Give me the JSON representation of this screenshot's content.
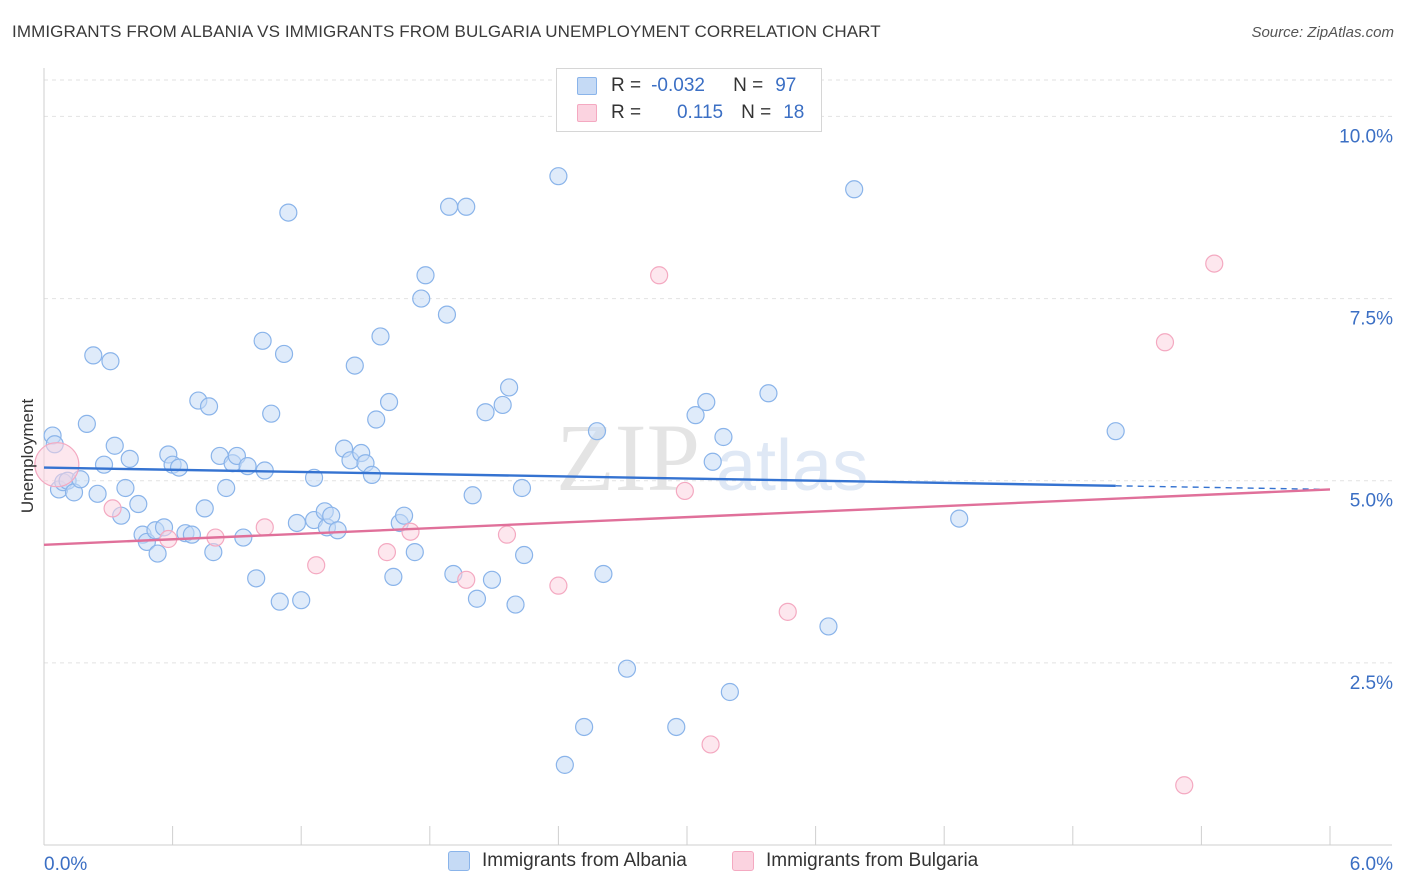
{
  "title": "IMMIGRANTS FROM ALBANIA VS IMMIGRANTS FROM BULGARIA UNEMPLOYMENT CORRELATION CHART",
  "source": "Source: ZipAtlas.com",
  "watermark": {
    "zip": "ZIP",
    "atlas": "atlas"
  },
  "legend": {
    "rows": [
      {
        "r_label": "R =",
        "r_value": "-0.032",
        "n_label": "N =",
        "n_value": "97"
      },
      {
        "r_label": "R =",
        "r_value": "0.115",
        "n_label": "N =",
        "n_value": "18"
      }
    ]
  },
  "chart_data": {
    "type": "scatter",
    "title": "IMMIGRANTS FROM ALBANIA VS IMMIGRANTS FROM BULGARIA UNEMPLOYMENT CORRELATION CHART",
    "xlabel": "",
    "ylabel": "Unemployment",
    "xlim": [
      0,
      6
    ],
    "ylim": [
      0,
      10.5
    ],
    "x_ticks": [
      0,
      0.6,
      1.2,
      1.8,
      2.4,
      3.0,
      3.6,
      4.2,
      4.8,
      5.4,
      6.0
    ],
    "x_tick_labels": [
      {
        "value": 0,
        "label": "0.0%"
      },
      {
        "value": 6,
        "label": "6.0%"
      }
    ],
    "y_ticks": [
      {
        "value": 2.5,
        "label": "2.5%"
      },
      {
        "value": 5.0,
        "label": "5.0%"
      },
      {
        "value": 7.5,
        "label": "7.5%"
      },
      {
        "value": 10.0,
        "label": "10.0%"
      }
    ],
    "grid": true,
    "legend_position": "top-center",
    "series": [
      {
        "name": "Immigrants from Albania",
        "color": "#8ab4ea",
        "line_color": "#3573d1",
        "r": -0.032,
        "n": 97,
        "trend": {
          "x0": 0,
          "y0": 5.18,
          "x1": 5.0,
          "y1": 4.93,
          "dash_to_x": 6.0,
          "dash_y": 4.88
        },
        "points": [
          [
            0.04,
            5.62
          ],
          [
            0.07,
            4.88
          ],
          [
            0.09,
            4.98
          ],
          [
            0.11,
            5.0
          ],
          [
            0.14,
            4.84
          ],
          [
            0.17,
            5.02
          ],
          [
            0.2,
            5.78
          ],
          [
            0.23,
            6.72
          ],
          [
            0.25,
            4.82
          ],
          [
            0.28,
            5.22
          ],
          [
            0.31,
            6.64
          ],
          [
            0.33,
            5.48
          ],
          [
            0.36,
            4.52
          ],
          [
            0.38,
            4.9
          ],
          [
            0.4,
            5.3
          ],
          [
            0.44,
            4.68
          ],
          [
            0.46,
            4.26
          ],
          [
            0.48,
            4.16
          ],
          [
            0.52,
            4.32
          ],
          [
            0.53,
            4.0
          ],
          [
            0.56,
            4.36
          ],
          [
            0.58,
            5.36
          ],
          [
            0.6,
            5.22
          ],
          [
            0.63,
            5.18
          ],
          [
            0.66,
            4.28
          ],
          [
            0.69,
            4.26
          ],
          [
            0.72,
            6.1
          ],
          [
            0.75,
            4.62
          ],
          [
            0.77,
            6.02
          ],
          [
            0.79,
            4.02
          ],
          [
            0.82,
            5.34
          ],
          [
            0.85,
            4.9
          ],
          [
            0.88,
            5.24
          ],
          [
            0.9,
            5.34
          ],
          [
            0.93,
            4.22
          ],
          [
            0.95,
            5.2
          ],
          [
            0.99,
            3.66
          ],
          [
            1.02,
            6.92
          ],
          [
            1.03,
            5.14
          ],
          [
            1.06,
            5.92
          ],
          [
            1.1,
            3.34
          ],
          [
            1.12,
            6.74
          ],
          [
            1.14,
            8.68
          ],
          [
            1.18,
            4.42
          ],
          [
            1.2,
            3.36
          ],
          [
            1.26,
            4.46
          ],
          [
            1.26,
            5.04
          ],
          [
            1.31,
            4.58
          ],
          [
            1.32,
            4.36
          ],
          [
            1.34,
            4.52
          ],
          [
            1.37,
            4.32
          ],
          [
            1.4,
            5.44
          ],
          [
            1.43,
            5.28
          ],
          [
            1.45,
            6.58
          ],
          [
            1.48,
            5.38
          ],
          [
            1.5,
            5.24
          ],
          [
            1.53,
            5.08
          ],
          [
            1.55,
            5.84
          ],
          [
            1.57,
            6.98
          ],
          [
            1.61,
            6.08
          ],
          [
            1.63,
            3.68
          ],
          [
            1.66,
            4.42
          ],
          [
            1.68,
            4.52
          ],
          [
            1.73,
            4.02
          ],
          [
            1.76,
            7.5
          ],
          [
            1.78,
            7.82
          ],
          [
            1.88,
            7.28
          ],
          [
            1.89,
            8.76
          ],
          [
            1.91,
            3.72
          ],
          [
            1.97,
            8.76
          ],
          [
            2.0,
            4.8
          ],
          [
            2.02,
            3.38
          ],
          [
            2.06,
            5.94
          ],
          [
            2.09,
            3.64
          ],
          [
            2.14,
            6.04
          ],
          [
            2.17,
            6.28
          ],
          [
            2.2,
            3.3
          ],
          [
            2.23,
            4.9
          ],
          [
            2.24,
            3.98
          ],
          [
            2.4,
            9.18
          ],
          [
            2.43,
            1.1
          ],
          [
            2.52,
            1.62
          ],
          [
            2.58,
            5.68
          ],
          [
            2.61,
            3.72
          ],
          [
            2.72,
            2.42
          ],
          [
            2.95,
            1.62
          ],
          [
            3.04,
            5.9
          ],
          [
            3.09,
            6.08
          ],
          [
            3.12,
            5.26
          ],
          [
            3.17,
            5.6
          ],
          [
            3.2,
            2.1
          ],
          [
            3.38,
            6.2
          ],
          [
            3.66,
            3.0
          ],
          [
            3.78,
            9.0
          ],
          [
            4.27,
            4.48
          ],
          [
            5.0,
            5.68
          ],
          [
            0.05,
            5.5
          ]
        ]
      },
      {
        "name": "Immigrants from Bulgaria",
        "color": "#f4a9c1",
        "line_color": "#e0709a",
        "r": 0.115,
        "n": 18,
        "trend": {
          "x0": 0,
          "y0": 4.12,
          "x1": 6.0,
          "y1": 4.88
        },
        "points": [
          [
            0.06,
            5.22
          ],
          [
            0.32,
            4.62
          ],
          [
            0.58,
            4.2
          ],
          [
            0.8,
            4.22
          ],
          [
            1.03,
            4.36
          ],
          [
            1.27,
            3.84
          ],
          [
            1.6,
            4.02
          ],
          [
            1.71,
            4.3
          ],
          [
            1.97,
            3.64
          ],
          [
            2.16,
            4.26
          ],
          [
            2.4,
            3.56
          ],
          [
            2.87,
            7.82
          ],
          [
            2.99,
            4.86
          ],
          [
            3.11,
            1.38
          ],
          [
            3.47,
            3.2
          ],
          [
            5.23,
            6.9
          ],
          [
            5.46,
            7.98
          ],
          [
            5.32,
            0.82
          ]
        ]
      }
    ]
  }
}
